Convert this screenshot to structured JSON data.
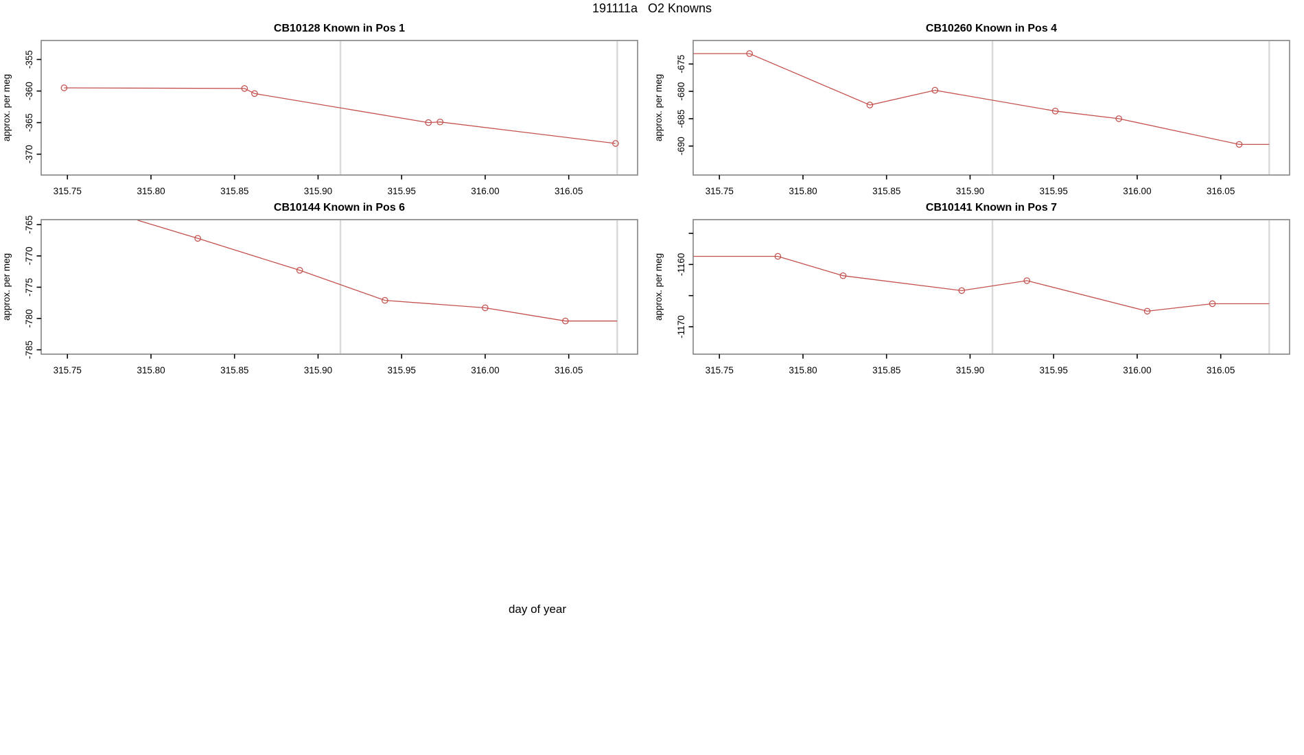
{
  "header": {
    "title": "191111a   O2 Knowns"
  },
  "footer": {
    "xlabel": "day of year"
  },
  "style": {
    "line_color": "#c4504d",
    "box_color": "#828282",
    "vline_color": "#d9d9d9",
    "tick_color": "#000000",
    "text_color": "#000000"
  },
  "axis": {
    "xusr": [
      315.7343,
      316.0912
    ],
    "xticks": [
      "315.75",
      "315.80",
      "315.85",
      "315.90",
      "315.95",
      "316.00",
      "316.05"
    ],
    "vlines": [
      315.9134,
      316.079
    ]
  },
  "chart_data": [
    {
      "type": "line",
      "title": "CB10128   Known in Pos 1",
      "ylabel": "approx. per meg",
      "xlabel": "day of year",
      "x": [
        315.748,
        315.856,
        315.862,
        315.966,
        315.973,
        316.078
      ],
      "y": [
        -359.5,
        -359.6,
        -360.4,
        -365.0,
        -364.9,
        -368.3
      ],
      "pre": null,
      "post": null,
      "yusr": [
        -373.3,
        -352.0
      ],
      "yticks": [
        {
          "v": -355,
          "t": "-355"
        },
        {
          "v": -360,
          "t": "-360"
        },
        {
          "v": -365,
          "t": "-365"
        },
        {
          "v": -370,
          "t": "-370"
        }
      ]
    },
    {
      "type": "line",
      "title": "CB10260   Known in Pos 4",
      "ylabel": "approx. per meg",
      "xlabel": "day of year",
      "x": [
        315.768,
        315.84,
        315.879,
        315.951,
        315.989,
        316.061
      ],
      "y": [
        -673.1,
        -682.5,
        -679.8,
        -683.6,
        -685.0,
        -689.7
      ],
      "pre": [
        315.7343,
        -673.1
      ],
      "post": [
        316.079,
        -689.7
      ],
      "yusr": [
        -695.3,
        -670.7
      ],
      "yticks": [
        {
          "v": -675,
          "t": "-675"
        },
        {
          "v": -680,
          "t": "-680"
        },
        {
          "v": -685,
          "t": "-685"
        },
        {
          "v": -690,
          "t": "-690"
        }
      ]
    },
    {
      "type": "line",
      "title": "CB10144   Known in Pos 6",
      "ylabel": "approx. per meg",
      "xlabel": "day of year",
      "x": [
        315.828,
        315.889,
        315.94,
        316.0,
        316.048
      ],
      "y": [
        -767.2,
        -772.3,
        -777.1,
        -778.3,
        -780.4
      ],
      "pre": [
        315.792,
        -764.3
      ],
      "post": [
        316.079,
        -780.4
      ],
      "yusr": [
        -785.7,
        -764.2
      ],
      "yticks": [
        {
          "v": -765,
          "t": "-765"
        },
        {
          "v": -770,
          "t": "-770"
        },
        {
          "v": -775,
          "t": "-775"
        },
        {
          "v": -780,
          "t": "-780"
        },
        {
          "v": -785,
          "t": "-785"
        }
      ]
    },
    {
      "type": "line",
      "title": "CB10141   Known in Pos 7",
      "ylabel": "approx. per meg",
      "xlabel": "day of year",
      "x": [
        315.785,
        315.824,
        315.895,
        315.934,
        316.006,
        316.045
      ],
      "y": [
        -1158.7,
        -1161.8,
        -1164.2,
        -1162.6,
        -1167.5,
        -1166.3
      ],
      "pre": [
        315.7343,
        -1158.7
      ],
      "post": [
        316.079,
        -1166.3
      ],
      "yusr": [
        -1174.4,
        -1152.8
      ],
      "yticks": [
        {
          "v": -1155,
          "t": ""
        },
        {
          "v": -1160,
          "t": "-1160"
        },
        {
          "v": -1165,
          "t": ""
        },
        {
          "v": -1170,
          "t": "-1170"
        }
      ]
    }
  ]
}
